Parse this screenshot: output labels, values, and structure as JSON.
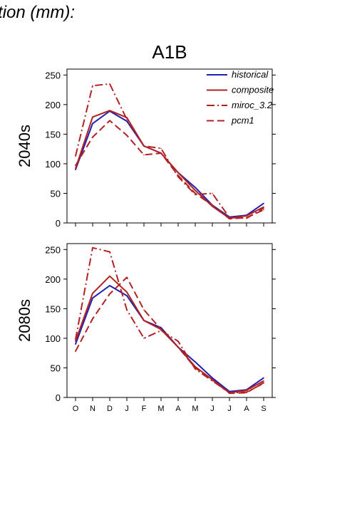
{
  "header": {
    "partial_title": "tion (mm):"
  },
  "chart_data": [
    {
      "type": "line",
      "title": "A1B",
      "ylabel": "2040s",
      "categories": [
        "O",
        "N",
        "D",
        "J",
        "F",
        "M",
        "A",
        "M",
        "J",
        "J",
        "A",
        "S"
      ],
      "ylim": [
        0,
        260
      ],
      "yticks": [
        0,
        50,
        100,
        150,
        200,
        250
      ],
      "grid": false,
      "legend": "top-right",
      "series": [
        {
          "name": "historical",
          "color": "#2020b0",
          "style": "solid",
          "values": [
            90,
            168,
            189,
            172,
            130,
            118,
            85,
            60,
            30,
            10,
            13,
            33
          ]
        },
        {
          "name": "composite",
          "color": "#b22222",
          "style": "solid",
          "values": [
            92,
            179,
            190,
            178,
            130,
            118,
            85,
            55,
            28,
            8,
            12,
            27
          ]
        },
        {
          "name": "miroc_3.2",
          "color": "#b22222",
          "style": "dashdot",
          "values": [
            113,
            232,
            235,
            175,
            130,
            126,
            78,
            48,
            50,
            9,
            8,
            25
          ]
        },
        {
          "name": "pcm1",
          "color": "#b22222",
          "style": "dash",
          "values": [
            97,
            145,
            173,
            148,
            115,
            118,
            80,
            50,
            30,
            7,
            9,
            22
          ]
        }
      ]
    },
    {
      "type": "line",
      "title": "",
      "ylabel": "2080s",
      "categories": [
        "O",
        "N",
        "D",
        "J",
        "F",
        "M",
        "A",
        "M",
        "J",
        "J",
        "A",
        "S"
      ],
      "ylim": [
        0,
        260
      ],
      "yticks": [
        0,
        50,
        100,
        150,
        200,
        250
      ],
      "grid": false,
      "series": [
        {
          "name": "historical",
          "color": "#2020b0",
          "style": "solid",
          "values": [
            90,
            168,
            189,
            172,
            130,
            118,
            85,
            60,
            33,
            10,
            13,
            33
          ]
        },
        {
          "name": "composite",
          "color": "#b22222",
          "style": "solid",
          "values": [
            95,
            176,
            205,
            178,
            130,
            115,
            85,
            52,
            30,
            8,
            12,
            28
          ]
        },
        {
          "name": "miroc_3.2",
          "color": "#b22222",
          "style": "dashdot",
          "values": [
            98,
            253,
            246,
            148,
            100,
            113,
            95,
            48,
            28,
            8,
            9,
            24
          ]
        },
        {
          "name": "pcm1",
          "color": "#b22222",
          "style": "dash",
          "values": [
            78,
            133,
            175,
            203,
            148,
            115,
            85,
            50,
            30,
            7,
            8,
            25
          ]
        }
      ]
    }
  ]
}
